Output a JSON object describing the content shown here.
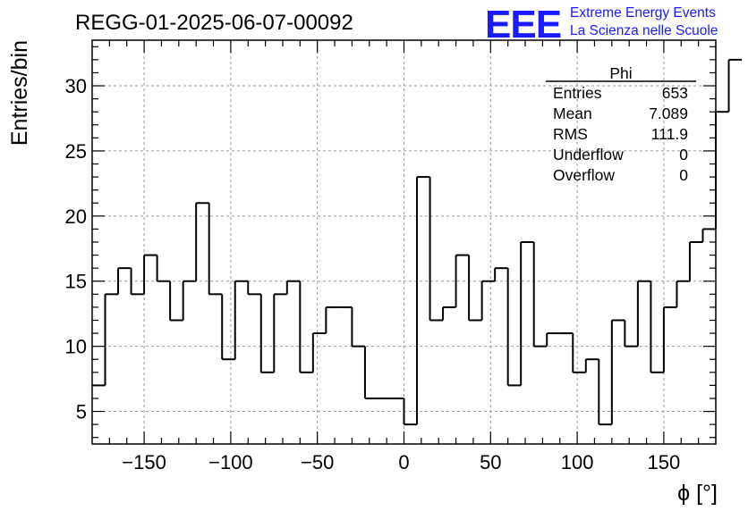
{
  "chart_data": {
    "type": "histogram",
    "title": "REGG-01-2025-06-07-00092",
    "xlabel": "ϕ [°]",
    "ylabel": "Entries/bin",
    "xlim": [
      -180,
      180
    ],
    "ylim": [
      2.5,
      33.5
    ],
    "bin_width": 7.5,
    "bin_start": -180,
    "values": [
      7,
      14,
      16,
      14,
      17,
      15,
      12,
      15,
      21,
      14,
      9,
      15,
      14,
      8,
      14,
      15,
      8,
      11,
      13,
      13,
      10,
      6,
      6,
      6,
      4,
      23,
      12,
      13,
      17,
      12,
      15,
      16,
      7,
      18,
      10,
      11,
      11,
      8,
      9,
      4,
      12,
      10,
      15,
      8,
      13,
      15,
      18,
      19,
      28,
      32
    ],
    "x_ticks": [
      -150,
      -100,
      -50,
      0,
      50,
      100,
      150
    ],
    "x_tick_labels": [
      "−150",
      "−100",
      "−50",
      "0",
      "50",
      "100",
      "150"
    ],
    "y_ticks": [
      5,
      10,
      15,
      20,
      25,
      30
    ],
    "y_tick_labels": [
      "5",
      "10",
      "15",
      "20",
      "25",
      "30"
    ],
    "grid": true,
    "legend": "none",
    "stats_box": {
      "title": "Phi",
      "placement": "top-right",
      "rows": [
        {
          "label": "Entries",
          "value": "653"
        },
        {
          "label": "Mean",
          "value": "7.089"
        },
        {
          "label": "RMS",
          "value": "111.9"
        },
        {
          "label": "Underflow",
          "value": "0"
        },
        {
          "label": "Overflow",
          "value": "0"
        }
      ]
    },
    "colors": {
      "line": "#000000",
      "grid": "#9a9a9a",
      "logo": "#1a1aff"
    }
  },
  "logo": {
    "mark": "EEE",
    "line1": "Extreme Energy Events",
    "line2": "La Scienza nelle Scuole"
  }
}
